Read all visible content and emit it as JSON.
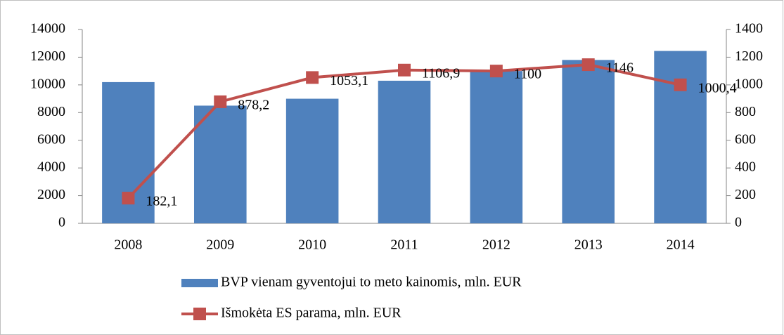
{
  "chart_data": {
    "type": "bar",
    "categories": [
      "2008",
      "2009",
      "2010",
      "2011",
      "2012",
      "2013",
      "2014"
    ],
    "series": [
      {
        "name": "BVP vienam gyventojui to meto kainomis, mln. EUR",
        "type": "bar",
        "color": "#4f81bd",
        "values": [
          10200,
          8500,
          9000,
          10300,
          11000,
          11800,
          12450
        ]
      },
      {
        "name": "Išmokėta ES parama, mln. EUR",
        "type": "line",
        "axis": "y2",
        "color": "#c0504d",
        "values": [
          182.1,
          878.2,
          1053.1,
          1106.9,
          1100,
          1146,
          1000.4
        ],
        "value_labels": [
          "182,1",
          "878,2",
          "1053,1",
          "1106,9",
          "1100",
          "1146",
          "1000,4"
        ]
      }
    ],
    "ylim": [
      0,
      14000
    ],
    "yticks": [
      0,
      2000,
      4000,
      6000,
      8000,
      10000,
      12000,
      14000
    ],
    "y2lim": [
      0,
      1400
    ],
    "y2ticks": [
      0,
      200,
      400,
      600,
      800,
      1000,
      1200,
      1400
    ],
    "legend": "bottom"
  }
}
